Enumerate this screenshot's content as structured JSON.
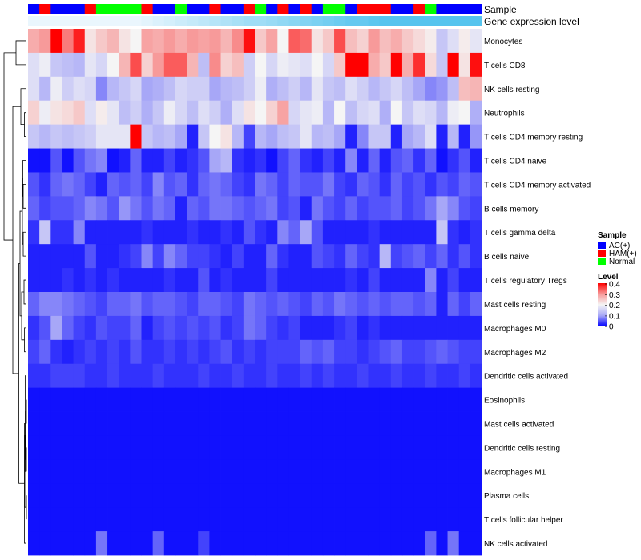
{
  "chart_data": {
    "type": "heatmap",
    "title": "",
    "annotations": {
      "sample_label": "Sample",
      "gene_label": "Gene expression level"
    },
    "rows": [
      "Monocytes",
      "T cells CD8",
      "NK cells resting",
      "Neutrophils",
      "T cells CD4 memory resting",
      "T cells CD4 naive",
      "T cells CD4 memory activated",
      "B cells memory",
      "T cells gamma delta",
      "B cells naive",
      "T cells regulatory  Tregs",
      "Mast cells resting",
      "Macrophages M0",
      "Macrophages M2",
      "Dendritic cells activated",
      "Eosinophils",
      "Mast cells activated",
      "Dendritic cells resting",
      "Macrophages M1",
      "Plasma cells",
      "T cells follicular helper",
      "NK cells activated"
    ],
    "samples": [
      "AC(+)",
      "HAM(+)",
      "AC(+)",
      "AC(+)",
      "AC(+)",
      "HAM(+)",
      "Normal",
      "Normal",
      "Normal",
      "Normal",
      "HAM(+)",
      "AC(+)",
      "AC(+)",
      "Normal",
      "AC(+)",
      "AC(+)",
      "HAM(+)",
      "AC(+)",
      "AC(+)",
      "HAM(+)",
      "Normal",
      "AC(+)",
      "HAM(+)",
      "AC(+)",
      "HAM(+)",
      "AC(+)",
      "Normal",
      "Normal",
      "AC(+)",
      "HAM(+)",
      "HAM(+)",
      "HAM(+)",
      "AC(+)",
      "AC(+)",
      "HAM(+)",
      "Normal",
      "AC(+)",
      "AC(+)",
      "AC(+)",
      "AC(+)"
    ],
    "sample_colors": {
      "AC(+)": "#0000ff",
      "HAM(+)": "#ff0000",
      "Normal": "#00ff00"
    },
    "gene_expression_level": [
      0,
      0,
      0,
      0,
      0,
      0,
      0,
      0,
      0,
      0,
      0.05,
      0.1,
      0.15,
      0.2,
      0.25,
      0.3,
      0.35,
      0.4,
      0.45,
      0.5,
      0.5,
      0.55,
      0.6,
      0.65,
      0.7,
      0.75,
      0.8,
      0.85,
      0.9,
      0.9,
      0.95,
      1,
      1,
      1,
      1,
      1,
      1,
      1,
      1,
      1
    ],
    "gene_colors": {
      "low": "#eaf6fd",
      "high": "#56c4ee"
    },
    "values": [
      [
        0.28,
        0.3,
        0.4,
        0.32,
        0.38,
        0.22,
        0.25,
        0.27,
        0.22,
        0.2,
        0.29,
        0.28,
        0.3,
        0.28,
        0.3,
        0.29,
        0.3,
        0.27,
        0.31,
        0.39,
        0.25,
        0.29,
        0.2,
        0.34,
        0.33,
        0.22,
        0.25,
        0.35,
        0.26,
        0.24,
        0.3,
        0.26,
        0.28,
        0.25,
        0.23,
        0.21,
        0.14,
        0.17,
        0.21,
        0.18
      ],
      [
        0.17,
        0.19,
        0.14,
        0.13,
        0.12,
        0.18,
        0.16,
        0.2,
        0.27,
        0.35,
        0.24,
        0.3,
        0.34,
        0.34,
        0.27,
        0.13,
        0.31,
        0.24,
        0.26,
        0.15,
        0.2,
        0.16,
        0.19,
        0.18,
        0.17,
        0.2,
        0.16,
        0.25,
        0.4,
        0.41,
        0.28,
        0.25,
        0.4,
        0.28,
        0.37,
        0.23,
        0.14,
        0.41,
        0.22,
        0.39
      ],
      [
        0.17,
        0.12,
        0.19,
        0.15,
        0.17,
        0.16,
        0.08,
        0.12,
        0.14,
        0.16,
        0.1,
        0.11,
        0.13,
        0.16,
        0.15,
        0.15,
        0.1,
        0.12,
        0.13,
        0.15,
        0.19,
        0.11,
        0.13,
        0.15,
        0.12,
        0.18,
        0.14,
        0.13,
        0.17,
        0.15,
        0.12,
        0.14,
        0.16,
        0.13,
        0.1,
        0.08,
        0.09,
        0.13,
        0.26,
        0.27
      ],
      [
        0.24,
        0.19,
        0.22,
        0.23,
        0.25,
        0.17,
        0.21,
        0.18,
        0.13,
        0.15,
        0.11,
        0.14,
        0.19,
        0.16,
        0.13,
        0.17,
        0.15,
        0.11,
        0.17,
        0.22,
        0.2,
        0.24,
        0.29,
        0.16,
        0.18,
        0.19,
        0.12,
        0.2,
        0.13,
        0.16,
        0.17,
        0.11,
        0.2,
        0.14,
        0.17,
        0.16,
        0.12,
        0.19,
        0.2,
        0.11
      ],
      [
        0.14,
        0.12,
        0.14,
        0.13,
        0.14,
        0.15,
        0.18,
        0.18,
        0.18,
        0.4,
        0.14,
        0.12,
        0.13,
        0.1,
        0.02,
        0.14,
        0.2,
        0.22,
        0.12,
        0.04,
        0.12,
        0.1,
        0.13,
        0.14,
        0.18,
        0.12,
        0.13,
        0.1,
        0.02,
        0.08,
        0.14,
        0.14,
        0.02,
        0.1,
        0.12,
        0.17,
        0.02,
        0.12,
        0.02,
        0.09
      ],
      [
        0.01,
        0.01,
        0.05,
        0.01,
        0.05,
        0.07,
        0.08,
        0.01,
        0.02,
        0.06,
        0.02,
        0.02,
        0.04,
        0.02,
        0.03,
        0.05,
        0.1,
        0.12,
        0.03,
        0.02,
        0.03,
        0.01,
        0.04,
        0.06,
        0.03,
        0.02,
        0.04,
        0.02,
        0.08,
        0.02,
        0.06,
        0.02,
        0.05,
        0.06,
        0.03,
        0.06,
        0.01,
        0.03,
        0.05,
        0.02
      ],
      [
        0.05,
        0.03,
        0.06,
        0.07,
        0.06,
        0.04,
        0.02,
        0.06,
        0.05,
        0.06,
        0.04,
        0.08,
        0.05,
        0.06,
        0.03,
        0.06,
        0.07,
        0.06,
        0.04,
        0.03,
        0.07,
        0.06,
        0.04,
        0.06,
        0.05,
        0.05,
        0.07,
        0.04,
        0.03,
        0.06,
        0.05,
        0.03,
        0.06,
        0.04,
        0.05,
        0.03,
        0.05,
        0.04,
        0.06,
        0.05
      ],
      [
        0.06,
        0.04,
        0.05,
        0.05,
        0.06,
        0.08,
        0.07,
        0.05,
        0.09,
        0.07,
        0.05,
        0.07,
        0.06,
        0.02,
        0.06,
        0.05,
        0.07,
        0.07,
        0.06,
        0.05,
        0.06,
        0.07,
        0.04,
        0.05,
        0.02,
        0.07,
        0.05,
        0.04,
        0.06,
        0.04,
        0.05,
        0.05,
        0.06,
        0.04,
        0.05,
        0.07,
        0.1,
        0.08,
        0.05,
        0.04
      ],
      [
        0.03,
        0.14,
        0.03,
        0.03,
        0.08,
        0.02,
        0.02,
        0.02,
        0.02,
        0.02,
        0.03,
        0.02,
        0.02,
        0.02,
        0.03,
        0.02,
        0.02,
        0.03,
        0.02,
        0.05,
        0.03,
        0.02,
        0.08,
        0.06,
        0.1,
        0.05,
        0.02,
        0.02,
        0.02,
        0.02,
        0.03,
        0.02,
        0.02,
        0.02,
        0.02,
        0.02,
        0.14,
        0.03,
        0.02,
        0.03
      ],
      [
        0.02,
        0.02,
        0.02,
        0.02,
        0.02,
        0.05,
        0.02,
        0.02,
        0.03,
        0.04,
        0.08,
        0.04,
        0.08,
        0.06,
        0.04,
        0.04,
        0.03,
        0.02,
        0.04,
        0.02,
        0.02,
        0.06,
        0.03,
        0.02,
        0.02,
        0.05,
        0.04,
        0.03,
        0.06,
        0.04,
        0.03,
        0.12,
        0.04,
        0.05,
        0.06,
        0.04,
        0.06,
        0.03,
        0.05,
        0.03
      ],
      [
        0.02,
        0.02,
        0.02,
        0.03,
        0.02,
        0.03,
        0.02,
        0.03,
        0.02,
        0.02,
        0.02,
        0.02,
        0.03,
        0.02,
        0.02,
        0.05,
        0.02,
        0.03,
        0.02,
        0.02,
        0.02,
        0.04,
        0.02,
        0.02,
        0.02,
        0.02,
        0.02,
        0.02,
        0.03,
        0.02,
        0.04,
        0.02,
        0.02,
        0.02,
        0.02,
        0.08,
        0.02,
        0.04,
        0.02,
        0.02
      ],
      [
        0.06,
        0.08,
        0.08,
        0.07,
        0.06,
        0.05,
        0.04,
        0.06,
        0.06,
        0.07,
        0.05,
        0.06,
        0.06,
        0.05,
        0.04,
        0.06,
        0.06,
        0.05,
        0.04,
        0.07,
        0.06,
        0.05,
        0.06,
        0.05,
        0.04,
        0.06,
        0.05,
        0.07,
        0.06,
        0.05,
        0.06,
        0.05,
        0.06,
        0.06,
        0.05,
        0.06,
        0.02,
        0.06,
        0.04,
        0.06
      ],
      [
        0.03,
        0.05,
        0.1,
        0.06,
        0.04,
        0.03,
        0.05,
        0.04,
        0.04,
        0.06,
        0.02,
        0.04,
        0.05,
        0.04,
        0.05,
        0.04,
        0.05,
        0.03,
        0.04,
        0.07,
        0.06,
        0.04,
        0.03,
        0.04,
        0.02,
        0.02,
        0.02,
        0.03,
        0.04,
        0.02,
        0.03,
        0.02,
        0.02,
        0.02,
        0.02,
        0.02,
        0.02,
        0.02,
        0.02,
        0.02
      ],
      [
        0.04,
        0.06,
        0.03,
        0.02,
        0.03,
        0.04,
        0.03,
        0.04,
        0.03,
        0.05,
        0.03,
        0.03,
        0.04,
        0.03,
        0.04,
        0.03,
        0.04,
        0.05,
        0.03,
        0.04,
        0.03,
        0.04,
        0.04,
        0.04,
        0.06,
        0.05,
        0.06,
        0.04,
        0.04,
        0.03,
        0.04,
        0.05,
        0.06,
        0.04,
        0.04,
        0.05,
        0.06,
        0.05,
        0.04,
        0.04
      ],
      [
        0.03,
        0.03,
        0.04,
        0.04,
        0.04,
        0.03,
        0.03,
        0.04,
        0.03,
        0.03,
        0.03,
        0.04,
        0.03,
        0.03,
        0.03,
        0.04,
        0.03,
        0.03,
        0.04,
        0.03,
        0.03,
        0.04,
        0.03,
        0.03,
        0.04,
        0.03,
        0.04,
        0.03,
        0.03,
        0.04,
        0.03,
        0.03,
        0.04,
        0.03,
        0.03,
        0.04,
        0.03,
        0.03,
        0.04,
        0.03
      ],
      [
        0.01,
        0.01,
        0.01,
        0.01,
        0.01,
        0.01,
        0.01,
        0.01,
        0.01,
        0.01,
        0.01,
        0.01,
        0.01,
        0.01,
        0.01,
        0.01,
        0.01,
        0.01,
        0.01,
        0.01,
        0.01,
        0.01,
        0.01,
        0.01,
        0.01,
        0.01,
        0.01,
        0.01,
        0.01,
        0.01,
        0.01,
        0.01,
        0.01,
        0.01,
        0.01,
        0.01,
        0.01,
        0.01,
        0.01,
        0.01
      ],
      [
        0.01,
        0.01,
        0.01,
        0.01,
        0.01,
        0.01,
        0.01,
        0.01,
        0.01,
        0.01,
        0.01,
        0.01,
        0.01,
        0.01,
        0.01,
        0.01,
        0.01,
        0.01,
        0.01,
        0.01,
        0.01,
        0.01,
        0.01,
        0.01,
        0.01,
        0.01,
        0.01,
        0.01,
        0.01,
        0.01,
        0.01,
        0.01,
        0.01,
        0.01,
        0.01,
        0.01,
        0.01,
        0.01,
        0.01,
        0.01
      ],
      [
        0.01,
        0.01,
        0.01,
        0.01,
        0.01,
        0.01,
        0.01,
        0.01,
        0.01,
        0.01,
        0.01,
        0.01,
        0.01,
        0.01,
        0.01,
        0.01,
        0.01,
        0.01,
        0.01,
        0.01,
        0.01,
        0.01,
        0.01,
        0.01,
        0.01,
        0.01,
        0.01,
        0.01,
        0.01,
        0.01,
        0.01,
        0.01,
        0.01,
        0.01,
        0.01,
        0.01,
        0.01,
        0.01,
        0.01,
        0.01
      ],
      [
        0.01,
        0.01,
        0.01,
        0.01,
        0.01,
        0.01,
        0.01,
        0.01,
        0.01,
        0.01,
        0.01,
        0.01,
        0.01,
        0.01,
        0.01,
        0.01,
        0.01,
        0.01,
        0.01,
        0.01,
        0.01,
        0.01,
        0.01,
        0.01,
        0.01,
        0.01,
        0.01,
        0.01,
        0.01,
        0.01,
        0.01,
        0.01,
        0.01,
        0.01,
        0.01,
        0.01,
        0.01,
        0.01,
        0.01,
        0.01
      ],
      [
        0.01,
        0.01,
        0.01,
        0.01,
        0.01,
        0.01,
        0.01,
        0.01,
        0.01,
        0.01,
        0.01,
        0.01,
        0.01,
        0.01,
        0.01,
        0.01,
        0.01,
        0.01,
        0.01,
        0.01,
        0.01,
        0.01,
        0.01,
        0.01,
        0.01,
        0.01,
        0.01,
        0.01,
        0.01,
        0.01,
        0.01,
        0.01,
        0.01,
        0.01,
        0.01,
        0.01,
        0.01,
        0.01,
        0.01,
        0.01
      ],
      [
        0.01,
        0.01,
        0.01,
        0.01,
        0.01,
        0.01,
        0.01,
        0.01,
        0.01,
        0.01,
        0.01,
        0.01,
        0.01,
        0.01,
        0.01,
        0.01,
        0.01,
        0.01,
        0.01,
        0.01,
        0.01,
        0.01,
        0.01,
        0.01,
        0.01,
        0.01,
        0.01,
        0.01,
        0.01,
        0.01,
        0.01,
        0.01,
        0.01,
        0.01,
        0.01,
        0.01,
        0.01,
        0.01,
        0.01,
        0.01
      ],
      [
        0.01,
        0.01,
        0.01,
        0.01,
        0.01,
        0.01,
        0.07,
        0.01,
        0.01,
        0.01,
        0.01,
        0.06,
        0.01,
        0.01,
        0.01,
        0.04,
        0.01,
        0.01,
        0.01,
        0.01,
        0.01,
        0.01,
        0.01,
        0.01,
        0.01,
        0.01,
        0.01,
        0.01,
        0.01,
        0.01,
        0.01,
        0.01,
        0.01,
        0.01,
        0.01,
        0.06,
        0.01,
        0.07,
        0.01,
        0.01
      ]
    ],
    "color_scale": {
      "stops": [
        0,
        0.1,
        0.2,
        0.3,
        0.4
      ],
      "colors": [
        "#0000ff",
        "#a7a7f7",
        "#f5f5f5",
        "#f79a9a",
        "#ff0000"
      ]
    },
    "legend": {
      "position": "right",
      "sample_title": "Sample",
      "sample_entries": [
        "AC(+)",
        "HAM(+)",
        "Normal"
      ],
      "level_title": "Level",
      "level_ticks": [
        "0.4",
        "0.3",
        "0.2",
        "0.1",
        "0"
      ]
    }
  }
}
